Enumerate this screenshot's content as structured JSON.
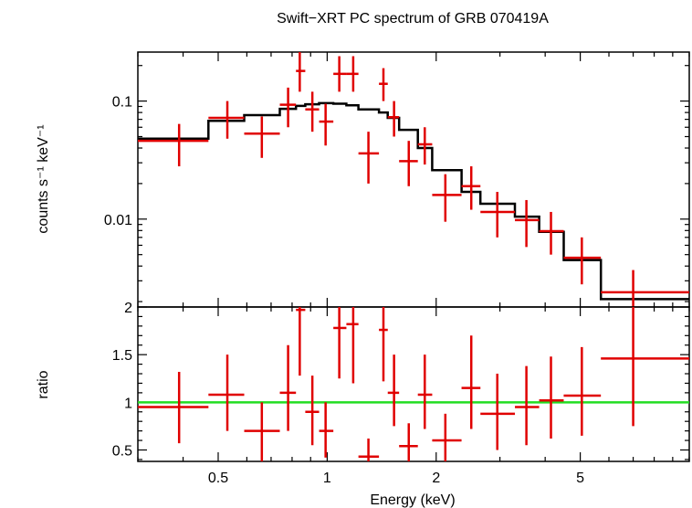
{
  "chart_data": [
    {
      "type": "step+errorbar",
      "title": "Swift−XRT PC spectrum of GRB 070419A",
      "ylabel": "counts s⁻¹ keV⁻¹",
      "xscale": "log",
      "yscale": "log",
      "xlim": [
        0.3,
        10
      ],
      "ylim": [
        0.0018,
        0.26
      ],
      "yticks": [
        {
          "value": 0.1,
          "label": "0.1"
        },
        {
          "value": 0.01,
          "label": "0.01"
        }
      ],
      "series": [
        {
          "kind": "data",
          "color": "#e00000",
          "points": [
            {
              "x": 0.39,
              "xlo": 0.3,
              "xhi": 0.47,
              "y": 0.046,
              "ylo": 0.028,
              "yhi": 0.064
            },
            {
              "x": 0.53,
              "xlo": 0.47,
              "xhi": 0.59,
              "y": 0.072,
              "ylo": 0.048,
              "yhi": 0.1
            },
            {
              "x": 0.66,
              "xlo": 0.59,
              "xhi": 0.74,
              "y": 0.053,
              "ylo": 0.033,
              "yhi": 0.074
            },
            {
              "x": 0.78,
              "xlo": 0.74,
              "xhi": 0.82,
              "y": 0.093,
              "ylo": 0.06,
              "yhi": 0.13
            },
            {
              "x": 0.84,
              "xlo": 0.82,
              "xhi": 0.87,
              "y": 0.18,
              "ylo": 0.12,
              "yhi": 0.26
            },
            {
              "x": 0.91,
              "xlo": 0.87,
              "xhi": 0.95,
              "y": 0.085,
              "ylo": 0.055,
              "yhi": 0.12
            },
            {
              "x": 0.99,
              "xlo": 0.95,
              "xhi": 1.04,
              "y": 0.067,
              "ylo": 0.042,
              "yhi": 0.095
            },
            {
              "x": 1.08,
              "xlo": 1.04,
              "xhi": 1.13,
              "y": 0.17,
              "ylo": 0.12,
              "yhi": 0.24
            },
            {
              "x": 1.18,
              "xlo": 1.13,
              "xhi": 1.22,
              "y": 0.17,
              "ylo": 0.12,
              "yhi": 0.24
            },
            {
              "x": 1.3,
              "xlo": 1.22,
              "xhi": 1.39,
              "y": 0.036,
              "ylo": 0.02,
              "yhi": 0.055
            },
            {
              "x": 1.43,
              "xlo": 1.39,
              "xhi": 1.47,
              "y": 0.14,
              "ylo": 0.1,
              "yhi": 0.19
            },
            {
              "x": 1.53,
              "xlo": 1.47,
              "xhi": 1.58,
              "y": 0.073,
              "ylo": 0.05,
              "yhi": 0.1
            },
            {
              "x": 1.68,
              "xlo": 1.58,
              "xhi": 1.78,
              "y": 0.031,
              "ylo": 0.019,
              "yhi": 0.046
            },
            {
              "x": 1.86,
              "xlo": 1.78,
              "xhi": 1.95,
              "y": 0.043,
              "ylo": 0.029,
              "yhi": 0.06
            },
            {
              "x": 2.12,
              "xlo": 1.95,
              "xhi": 2.35,
              "y": 0.016,
              "ylo": 0.0095,
              "yhi": 0.024
            },
            {
              "x": 2.5,
              "xlo": 2.35,
              "xhi": 2.65,
              "y": 0.019,
              "ylo": 0.012,
              "yhi": 0.028
            },
            {
              "x": 2.95,
              "xlo": 2.65,
              "xhi": 3.3,
              "y": 0.0115,
              "ylo": 0.007,
              "yhi": 0.017
            },
            {
              "x": 3.55,
              "xlo": 3.3,
              "xhi": 3.85,
              "y": 0.0098,
              "ylo": 0.0058,
              "yhi": 0.0145
            },
            {
              "x": 4.15,
              "xlo": 3.85,
              "xhi": 4.5,
              "y": 0.0079,
              "ylo": 0.005,
              "yhi": 0.0115
            },
            {
              "x": 5.05,
              "xlo": 4.5,
              "xhi": 5.7,
              "y": 0.0047,
              "ylo": 0.0028,
              "yhi": 0.007
            },
            {
              "x": 7.0,
              "xlo": 5.7,
              "xhi": 10.0,
              "y": 0.0024,
              "ylo": 0.0013,
              "yhi": 0.0037
            }
          ]
        },
        {
          "kind": "model",
          "color": "#000000",
          "steps": [
            {
              "xlo": 0.3,
              "xhi": 0.47,
              "y": 0.048
            },
            {
              "xlo": 0.47,
              "xhi": 0.59,
              "y": 0.068
            },
            {
              "xlo": 0.59,
              "xhi": 0.74,
              "y": 0.076
            },
            {
              "xlo": 0.74,
              "xhi": 0.82,
              "y": 0.086
            },
            {
              "xlo": 0.82,
              "xhi": 0.87,
              "y": 0.091
            },
            {
              "xlo": 0.87,
              "xhi": 0.95,
              "y": 0.094
            },
            {
              "xlo": 0.95,
              "xhi": 1.04,
              "y": 0.096
            },
            {
              "xlo": 1.04,
              "xhi": 1.13,
              "y": 0.095
            },
            {
              "xlo": 1.13,
              "xhi": 1.22,
              "y": 0.092
            },
            {
              "xlo": 1.22,
              "xhi": 1.39,
              "y": 0.085
            },
            {
              "xlo": 1.39,
              "xhi": 1.47,
              "y": 0.08
            },
            {
              "xlo": 1.47,
              "xhi": 1.58,
              "y": 0.072
            },
            {
              "xlo": 1.58,
              "xhi": 1.78,
              "y": 0.057
            },
            {
              "xlo": 1.78,
              "xhi": 1.95,
              "y": 0.04
            },
            {
              "xlo": 1.95,
              "xhi": 2.35,
              "y": 0.026
            },
            {
              "xlo": 2.35,
              "xhi": 2.65,
              "y": 0.017
            },
            {
              "xlo": 2.65,
              "xhi": 3.3,
              "y": 0.0135
            },
            {
              "xlo": 3.3,
              "xhi": 3.85,
              "y": 0.0105
            },
            {
              "xlo": 3.85,
              "xhi": 4.5,
              "y": 0.0078
            },
            {
              "xlo": 4.5,
              "xhi": 5.7,
              "y": 0.0045
            },
            {
              "xlo": 5.7,
              "xhi": 10.0,
              "y": 0.0021
            }
          ]
        }
      ]
    },
    {
      "type": "errorbar",
      "xlabel": "Energy (keV)",
      "ylabel": "ratio",
      "xscale": "log",
      "xlim": [
        0.3,
        10
      ],
      "ylim": [
        0.38,
        2.0
      ],
      "xticks": [
        {
          "value": 0.5,
          "label": "0.5"
        },
        {
          "value": 1,
          "label": "1"
        },
        {
          "value": 2,
          "label": "2"
        },
        {
          "value": 5,
          "label": "5"
        }
      ],
      "yticks": [
        {
          "value": 0.5,
          "label": "0.5"
        },
        {
          "value": 1,
          "label": "1"
        },
        {
          "value": 1.5,
          "label": "1.5"
        },
        {
          "value": 2,
          "label": "2"
        }
      ],
      "reference_line": {
        "y": 1,
        "color": "#22dd22"
      },
      "series": [
        {
          "kind": "data",
          "color": "#e00000",
          "points": [
            {
              "x": 0.39,
              "xlo": 0.3,
              "xhi": 0.47,
              "y": 0.95,
              "ylo": 0.57,
              "yhi": 1.32
            },
            {
              "x": 0.53,
              "xlo": 0.47,
              "xhi": 0.59,
              "y": 1.08,
              "ylo": 0.7,
              "yhi": 1.5
            },
            {
              "x": 0.66,
              "xlo": 0.59,
              "xhi": 0.74,
              "y": 0.7,
              "ylo": 0.38,
              "yhi": 1.0
            },
            {
              "x": 0.78,
              "xlo": 0.74,
              "xhi": 0.82,
              "y": 1.1,
              "ylo": 0.7,
              "yhi": 1.6
            },
            {
              "x": 0.84,
              "xlo": 0.82,
              "xhi": 0.87,
              "y": 1.97,
              "ylo": 1.28,
              "yhi": 2.0
            },
            {
              "x": 0.91,
              "xlo": 0.87,
              "xhi": 0.95,
              "y": 0.9,
              "ylo": 0.55,
              "yhi": 1.28
            },
            {
              "x": 0.99,
              "xlo": 0.95,
              "xhi": 1.04,
              "y": 0.7,
              "ylo": 0.42,
              "yhi": 1.0
            },
            {
              "x": 1.08,
              "xlo": 1.04,
              "xhi": 1.13,
              "y": 1.78,
              "ylo": 1.25,
              "yhi": 2.0
            },
            {
              "x": 1.18,
              "xlo": 1.13,
              "xhi": 1.22,
              "y": 1.82,
              "ylo": 1.2,
              "yhi": 2.0
            },
            {
              "x": 1.3,
              "xlo": 1.22,
              "xhi": 1.39,
              "y": 0.43,
              "ylo": 0.38,
              "yhi": 0.62
            },
            {
              "x": 1.43,
              "xlo": 1.39,
              "xhi": 1.47,
              "y": 1.76,
              "ylo": 1.22,
              "yhi": 2.0
            },
            {
              "x": 1.53,
              "xlo": 1.47,
              "xhi": 1.58,
              "y": 1.1,
              "ylo": 0.75,
              "yhi": 1.5
            },
            {
              "x": 1.68,
              "xlo": 1.58,
              "xhi": 1.78,
              "y": 0.54,
              "ylo": 0.38,
              "yhi": 0.78
            },
            {
              "x": 1.86,
              "xlo": 1.78,
              "xhi": 1.95,
              "y": 1.08,
              "ylo": 0.72,
              "yhi": 1.5
            },
            {
              "x": 2.12,
              "xlo": 1.95,
              "xhi": 2.35,
              "y": 0.6,
              "ylo": 0.38,
              "yhi": 0.88
            },
            {
              "x": 2.5,
              "xlo": 2.35,
              "xhi": 2.65,
              "y": 1.15,
              "ylo": 0.72,
              "yhi": 1.7
            },
            {
              "x": 2.95,
              "xlo": 2.65,
              "xhi": 3.3,
              "y": 0.88,
              "ylo": 0.5,
              "yhi": 1.3
            },
            {
              "x": 3.55,
              "xlo": 3.3,
              "xhi": 3.85,
              "y": 0.95,
              "ylo": 0.55,
              "yhi": 1.38
            },
            {
              "x": 4.15,
              "xlo": 3.85,
              "xhi": 4.5,
              "y": 1.02,
              "ylo": 0.62,
              "yhi": 1.48
            },
            {
              "x": 5.05,
              "xlo": 4.5,
              "xhi": 5.7,
              "y": 1.07,
              "ylo": 0.65,
              "yhi": 1.58
            },
            {
              "x": 7.0,
              "xlo": 5.7,
              "xhi": 10.0,
              "y": 1.46,
              "ylo": 0.75,
              "yhi": 2.0
            }
          ]
        }
      ]
    }
  ]
}
